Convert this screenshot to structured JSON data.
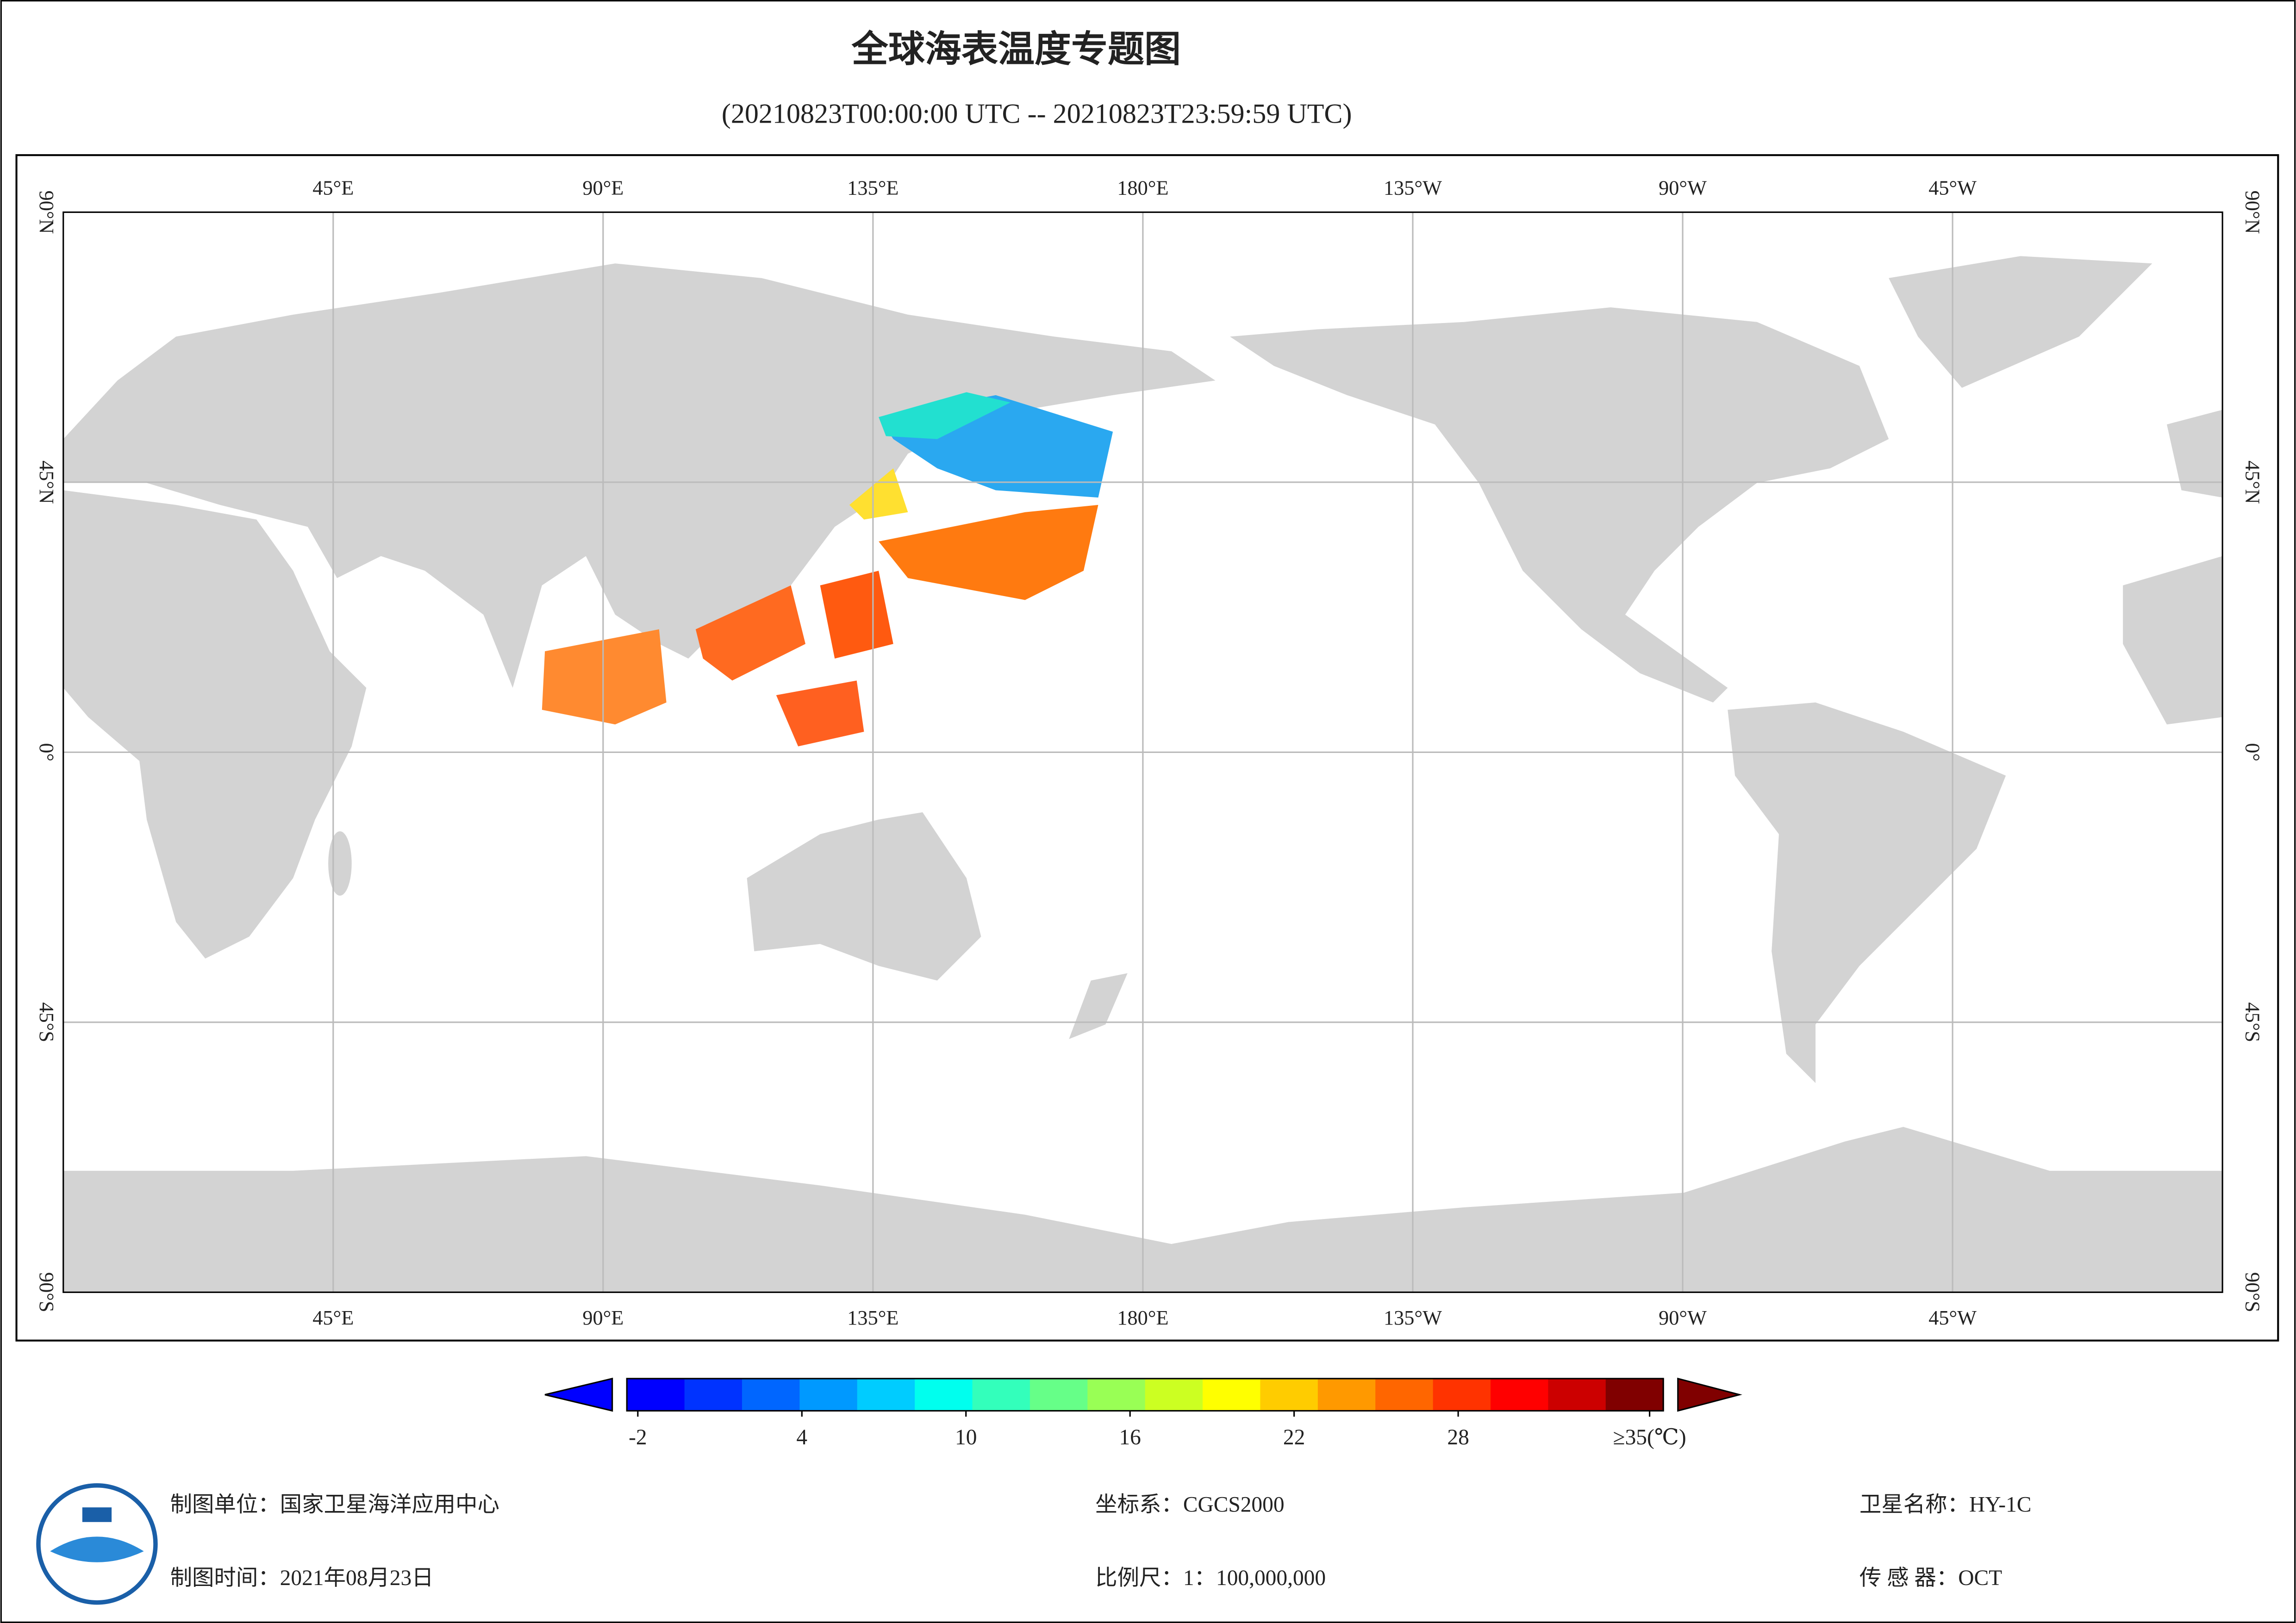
{
  "title": "全球海表温度专题图",
  "subtitle": "(20210823T00:00:00 UTC -- 20210823T23:59:59 UTC)",
  "map": {
    "lon_range": [
      0,
      360
    ],
    "lat_range": [
      -90,
      90
    ],
    "lon_ticks": [
      {
        "value": 45,
        "label": "45°E"
      },
      {
        "value": 90,
        "label": "90°E"
      },
      {
        "value": 135,
        "label": "135°E"
      },
      {
        "value": 180,
        "label": "180°E"
      },
      {
        "value": 225,
        "label": "135°W"
      },
      {
        "value": 270,
        "label": "90°W"
      },
      {
        "value": 315,
        "label": "45°W"
      }
    ],
    "lat_ticks": [
      {
        "value": 90,
        "label": "90°N"
      },
      {
        "value": 45,
        "label": "45°N"
      },
      {
        "value": 0,
        "label": "0°"
      },
      {
        "value": -45,
        "label": "45°S"
      },
      {
        "value": -90,
        "label": "90°S"
      }
    ],
    "land_color": "#d3d3d3",
    "grid": true
  },
  "colorbar": {
    "clim": [
      -2.4,
      35.5
    ],
    "ticks": [
      -2,
      4,
      10,
      16,
      22,
      28,
      {
        "value": 35,
        "label": "≥35(℃)"
      }
    ],
    "colors": [
      "#0000ff",
      "#0033ff",
      "#0066ff",
      "#0099ff",
      "#00ccff",
      "#00ffee",
      "#33ffbb",
      "#66ff88",
      "#99ff55",
      "#ccff22",
      "#ffff00",
      "#ffcc00",
      "#ff9900",
      "#ff6600",
      "#ff3300",
      "#ff0000",
      "#cc0000",
      "#800000"
    ]
  },
  "footer": {
    "producer": "制图单位：国家卫星海洋应用中心",
    "date": "制图时间：2021年08月23日",
    "crs": "坐标系：CGCS2000",
    "scale": "比例尺：1：100,000,000",
    "satellite": "卫星名称：HY-1C",
    "sensor": "传 感 器：OCT"
  }
}
